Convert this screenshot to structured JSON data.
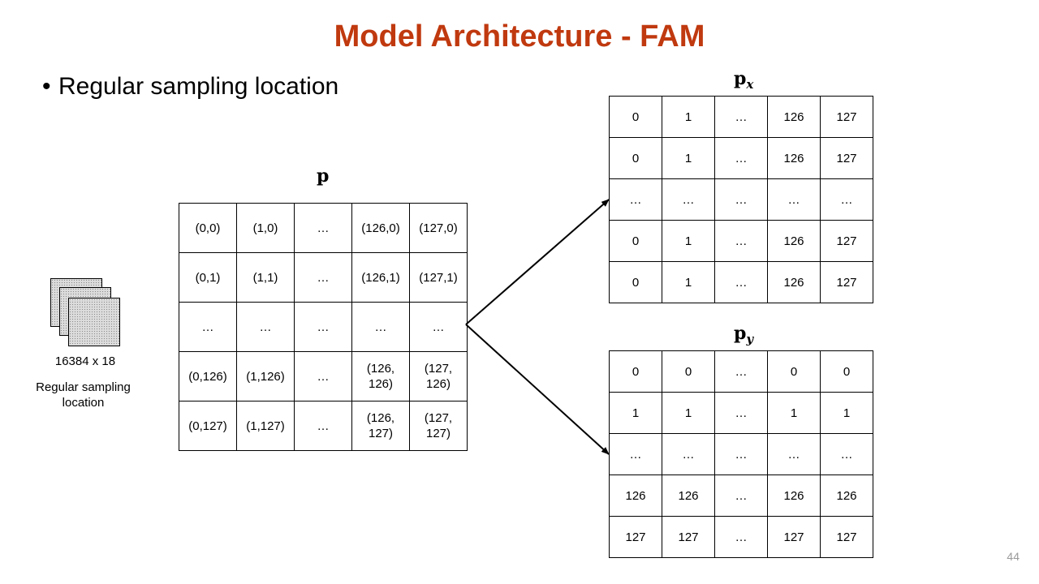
{
  "slide": {
    "title": "Model Architecture  -  FAM",
    "bullet": "Regular sampling location",
    "page_number": "44"
  },
  "stack_figure": {
    "size_label": "16384 x 18",
    "caption_line1": "Regular sampling",
    "caption_line2": "location",
    "fill_color": "#dcdcdc"
  },
  "grid_p": {
    "label": "p",
    "rows": [
      [
        "(0,0)",
        "(1,0)",
        "…",
        "(126,0)",
        "(127,0)"
      ],
      [
        "(0,1)",
        "(1,1)",
        "…",
        "(126,1)",
        "(127,1)"
      ],
      [
        "…",
        "…",
        "…",
        "…",
        "…"
      ],
      [
        "(0,126)",
        "(1,126)",
        "…",
        "(126,\n126)",
        "(127,\n126)"
      ],
      [
        "(0,127)",
        "(1,127)",
        "…",
        "(126,\n127)",
        "(127,\n127)"
      ]
    ]
  },
  "grid_px": {
    "label": "p",
    "subscript": "x",
    "rows": [
      [
        "0",
        "1",
        "…",
        "126",
        "127"
      ],
      [
        "0",
        "1",
        "…",
        "126",
        "127"
      ],
      [
        "…",
        "…",
        "…",
        "…",
        "…"
      ],
      [
        "0",
        "1",
        "…",
        "126",
        "127"
      ],
      [
        "0",
        "1",
        "…",
        "126",
        "127"
      ]
    ]
  },
  "grid_py": {
    "label": "p",
    "subscript": "y",
    "rows": [
      [
        "0",
        "0",
        "…",
        "0",
        "0"
      ],
      [
        "1",
        "1",
        "…",
        "1",
        "1"
      ],
      [
        "…",
        "…",
        "…",
        "…",
        "…"
      ],
      [
        "126",
        "126",
        "…",
        "126",
        "126"
      ],
      [
        "127",
        "127",
        "…",
        "127",
        "127"
      ]
    ]
  },
  "colors": {
    "title": "#c0390f",
    "page_number": "#9a9a9a"
  }
}
